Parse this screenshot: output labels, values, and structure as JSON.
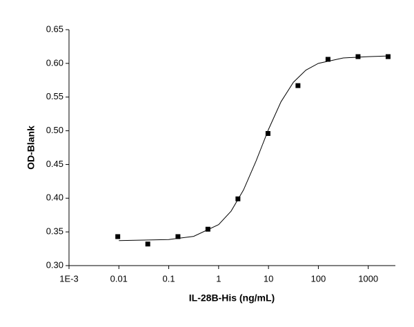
{
  "chart_data": {
    "type": "scatter",
    "x_label": "IL-28B-His (ng/mL)",
    "y_label": "OD-Blank",
    "log_x": true,
    "x": [
      0.0095,
      0.038,
      0.153,
      0.61,
      2.44,
      9.77,
      39,
      156,
      625,
      2500
    ],
    "values": [
      0.343,
      0.332,
      0.343,
      0.354,
      0.399,
      0.496,
      0.567,
      0.606,
      0.61,
      0.61
    ],
    "color": "#000000",
    "fit": {
      "x": [
        0.01,
        0.1,
        0.316,
        1,
        1.78,
        3.16,
        5.62,
        10,
        17.8,
        31.6,
        56.2,
        100,
        316,
        1000,
        2500
      ],
      "values": [
        0.3371,
        0.3386,
        0.3434,
        0.3608,
        0.3808,
        0.4123,
        0.455,
        0.502,
        0.543,
        0.572,
        0.59,
        0.6,
        0.608,
        0.61,
        0.611
      ]
    },
    "xlim": [
      0.001,
      3500
    ],
    "xticks": [
      {
        "value": 0.001,
        "label": "1E-3"
      },
      0.01,
      0.1,
      1,
      10,
      100,
      1000
    ],
    "ylim": [
      0.3,
      0.65
    ],
    "yticks": [
      {
        "value": 0.3,
        "label": "0.30"
      },
      {
        "value": 0.35,
        "label": "0.35"
      },
      {
        "value": 0.4,
        "label": "0.40"
      },
      {
        "value": 0.45,
        "label": "0.45"
      },
      {
        "value": 0.5,
        "label": "0.50"
      },
      {
        "value": 0.55,
        "label": "0.55"
      },
      {
        "value": 0.6,
        "label": "0.60"
      },
      {
        "value": 0.65,
        "label": "0.65"
      }
    ],
    "grid": false
  }
}
